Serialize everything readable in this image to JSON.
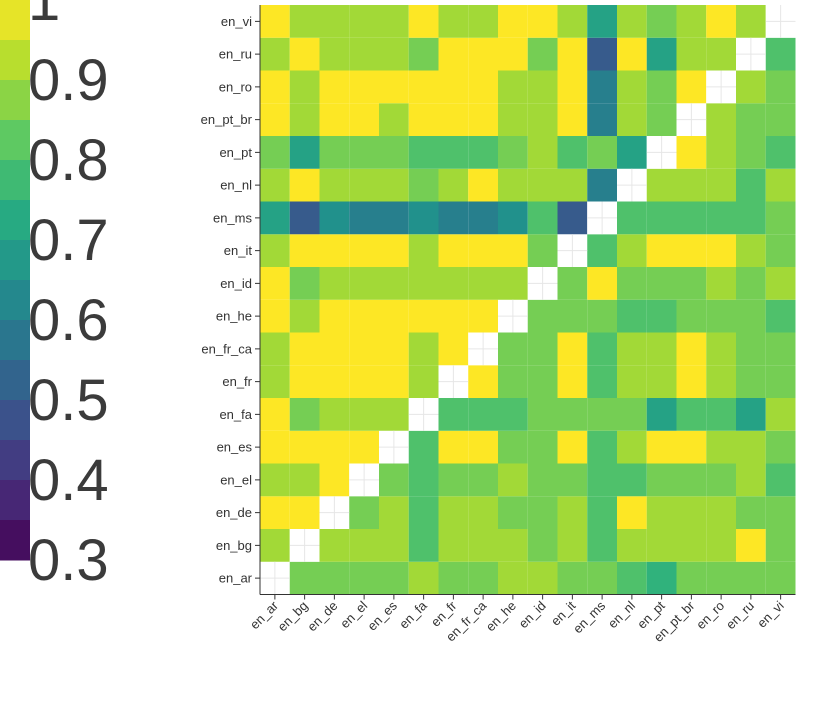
{
  "chart_data": {
    "type": "heatmap",
    "title": "",
    "xlabel": "",
    "ylabel": "",
    "categories": [
      "en_ar",
      "en_bg",
      "en_de",
      "en_el",
      "en_es",
      "en_fa",
      "en_fr",
      "en_fr_ca",
      "en_he",
      "en_id",
      "en_it",
      "en_ms",
      "en_nl",
      "en_pt",
      "en_pt_br",
      "en_ro",
      "en_ru",
      "en_vi"
    ],
    "matrix": [
      [
        null,
        0.85,
        0.85,
        0.85,
        0.85,
        0.9,
        0.85,
        0.85,
        0.9,
        0.9,
        0.85,
        0.85,
        0.8,
        0.75,
        0.85,
        0.85,
        0.85,
        0.85
      ],
      [
        0.9,
        null,
        0.9,
        0.9,
        0.9,
        0.8,
        0.9,
        0.9,
        0.9,
        0.85,
        0.9,
        0.8,
        0.9,
        0.9,
        0.9,
        0.9,
        1.0,
        0.85
      ],
      [
        1.0,
        1.0,
        null,
        0.85,
        0.9,
        0.8,
        0.9,
        0.9,
        0.85,
        0.85,
        0.9,
        0.8,
        1.0,
        0.9,
        0.9,
        0.9,
        0.85,
        0.85
      ],
      [
        0.9,
        0.9,
        1.0,
        null,
        0.85,
        0.8,
        0.85,
        0.85,
        0.9,
        0.85,
        0.85,
        0.8,
        0.8,
        0.85,
        0.85,
        0.85,
        0.9,
        0.8
      ],
      [
        1.0,
        1.0,
        1.0,
        1.0,
        null,
        0.8,
        1.0,
        1.0,
        0.85,
        0.85,
        1.0,
        0.8,
        0.9,
        1.0,
        1.0,
        0.9,
        0.9,
        0.85
      ],
      [
        1.0,
        0.85,
        0.9,
        0.9,
        0.9,
        null,
        0.8,
        0.8,
        0.8,
        0.85,
        0.85,
        0.85,
        0.85,
        0.7,
        0.8,
        0.8,
        0.7,
        0.9
      ],
      [
        0.9,
        1.0,
        1.0,
        1.0,
        1.0,
        0.9,
        null,
        1.0,
        0.85,
        0.85,
        1.0,
        0.8,
        0.9,
        0.9,
        1.0,
        0.9,
        0.85,
        0.85
      ],
      [
        0.9,
        1.0,
        1.0,
        1.0,
        1.0,
        0.9,
        1.0,
        null,
        0.85,
        0.85,
        1.0,
        0.8,
        0.9,
        0.9,
        1.0,
        0.9,
        0.85,
        0.85
      ],
      [
        1.0,
        0.9,
        1.0,
        1.0,
        1.0,
        1.0,
        1.0,
        1.0,
        null,
        0.85,
        0.85,
        0.85,
        0.8,
        0.8,
        0.85,
        0.85,
        0.85,
        0.8
      ],
      [
        1.0,
        0.85,
        0.9,
        0.9,
        0.9,
        0.9,
        0.9,
        0.9,
        0.9,
        null,
        0.85,
        1.0,
        0.85,
        0.85,
        0.85,
        0.9,
        0.85,
        0.9
      ],
      [
        0.9,
        1.0,
        1.0,
        1.0,
        1.0,
        0.9,
        1.0,
        1.0,
        1.0,
        0.85,
        null,
        0.8,
        0.9,
        1.0,
        1.0,
        1.0,
        0.9,
        0.85
      ],
      [
        0.7,
        0.5,
        0.65,
        0.6,
        0.6,
        0.65,
        0.6,
        0.6,
        0.65,
        0.8,
        0.5,
        null,
        0.8,
        0.8,
        0.8,
        0.8,
        0.8,
        0.85
      ],
      [
        0.9,
        1.0,
        0.9,
        0.9,
        0.9,
        0.85,
        0.9,
        1.0,
        0.9,
        0.9,
        0.9,
        0.6,
        null,
        0.9,
        0.9,
        0.9,
        0.8,
        0.9
      ],
      [
        0.85,
        0.7,
        0.85,
        0.85,
        0.85,
        0.8,
        0.8,
        0.8,
        0.85,
        0.9,
        0.8,
        0.85,
        0.7,
        null,
        1.0,
        0.9,
        0.85,
        0.8
      ],
      [
        1.0,
        0.9,
        1.0,
        1.0,
        0.9,
        1.0,
        1.0,
        1.0,
        0.9,
        0.9,
        1.0,
        0.6,
        0.9,
        0.85,
        null,
        0.9,
        0.85,
        0.85
      ],
      [
        1.0,
        0.9,
        1.0,
        1.0,
        1.0,
        1.0,
        1.0,
        1.0,
        0.9,
        0.9,
        1.0,
        0.6,
        0.9,
        0.85,
        1.0,
        null,
        0.9,
        0.85
      ],
      [
        0.9,
        1.0,
        0.9,
        0.9,
        0.9,
        0.85,
        1.0,
        1.0,
        1.0,
        0.85,
        1.0,
        0.5,
        1.0,
        0.7,
        0.9,
        0.9,
        null,
        0.8
      ],
      [
        1.0,
        0.9,
        0.9,
        0.9,
        0.9,
        1.0,
        0.9,
        0.9,
        1.0,
        1.0,
        0.9,
        0.7,
        0.9,
        0.85,
        0.9,
        1.0,
        0.9,
        null
      ]
    ],
    "colorbar": {
      "ticks": [
        "1",
        "0.9",
        "0.8",
        "0.7",
        "0.6",
        "0.5",
        "0.4",
        "0.3"
      ],
      "min": 0.3,
      "max": 1.0,
      "colors": [
        "#440154",
        "#472d7b",
        "#3b528b",
        "#2c728e",
        "#21918c",
        "#28ae80",
        "#5ec962",
        "#addc30",
        "#fde725"
      ]
    },
    "grid": false,
    "legend_placement": "left"
  }
}
